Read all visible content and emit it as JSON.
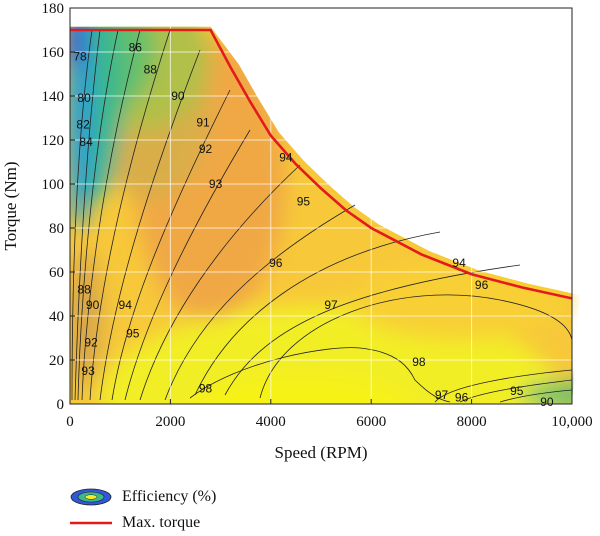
{
  "chart_data": {
    "type": "contour",
    "title": "",
    "xlabel": "Speed (RPM)",
    "ylabel": "Torque (Nm)",
    "xlim": [
      0,
      10000
    ],
    "ylim": [
      0,
      180
    ],
    "x_ticks": [
      0,
      2000,
      4000,
      6000,
      8000,
      10000
    ],
    "x_tick_labels": [
      "0",
      "2000",
      "4000",
      "6000",
      "8000",
      "10,000"
    ],
    "y_ticks": [
      0,
      20,
      40,
      60,
      80,
      100,
      120,
      140,
      160,
      180
    ],
    "y_tick_labels": [
      "0",
      "20",
      "40",
      "60",
      "80",
      "100",
      "120",
      "140",
      "160",
      "180"
    ],
    "grid": true,
    "legend_position": "bottom-left",
    "series": [
      {
        "name": "Efficiency (%)",
        "kind": "filled-contour"
      },
      {
        "name": "Max. torque",
        "kind": "line",
        "color": "#e41a1c",
        "x": [
          0,
          2800,
          3200,
          3600,
          4000,
          4500,
          5000,
          5500,
          6000,
          7000,
          8000,
          9000,
          10000
        ],
        "y": [
          170,
          170,
          153,
          137,
          122,
          109,
          98,
          88,
          80,
          68,
          59,
          53,
          48
        ]
      }
    ],
    "contour_labels": [
      {
        "text": "78",
        "x": 200,
        "y": 158
      },
      {
        "text": "80",
        "x": 280,
        "y": 139
      },
      {
        "text": "82",
        "x": 260,
        "y": 127
      },
      {
        "text": "84",
        "x": 320,
        "y": 119
      },
      {
        "text": "86",
        "x": 1300,
        "y": 162
      },
      {
        "text": "88",
        "x": 1600,
        "y": 152
      },
      {
        "text": "90",
        "x": 2150,
        "y": 140
      },
      {
        "text": "91",
        "x": 2650,
        "y": 128
      },
      {
        "text": "92",
        "x": 2700,
        "y": 116
      },
      {
        "text": "93",
        "x": 2900,
        "y": 100
      },
      {
        "text": "94",
        "x": 4300,
        "y": 112
      },
      {
        "text": "95",
        "x": 4650,
        "y": 92
      },
      {
        "text": "96",
        "x": 4100,
        "y": 64
      },
      {
        "text": "97",
        "x": 5200,
        "y": 45
      },
      {
        "text": "98",
        "x": 6950,
        "y": 19
      },
      {
        "text": "98",
        "x": 2700,
        "y": 7
      },
      {
        "text": "95",
        "x": 1250,
        "y": 32
      },
      {
        "text": "94",
        "x": 1100,
        "y": 45
      },
      {
        "text": "92",
        "x": 420,
        "y": 28
      },
      {
        "text": "93",
        "x": 360,
        "y": 15
      },
      {
        "text": "88",
        "x": 280,
        "y": 52
      },
      {
        "text": "90",
        "x": 450,
        "y": 45
      },
      {
        "text": "94",
        "x": 7750,
        "y": 64
      },
      {
        "text": "96",
        "x": 8200,
        "y": 54
      },
      {
        "text": "97",
        "x": 7400,
        "y": 4
      },
      {
        "text": "96",
        "x": 7800,
        "y": 3
      },
      {
        "text": "95",
        "x": 8900,
        "y": 6
      },
      {
        "text": "90",
        "x": 9500,
        "y": 1
      }
    ]
  },
  "legend": {
    "efficiency_label": "Efficiency (%)",
    "torque_label": "Max. torque",
    "torque_color": "#e41a1c"
  }
}
